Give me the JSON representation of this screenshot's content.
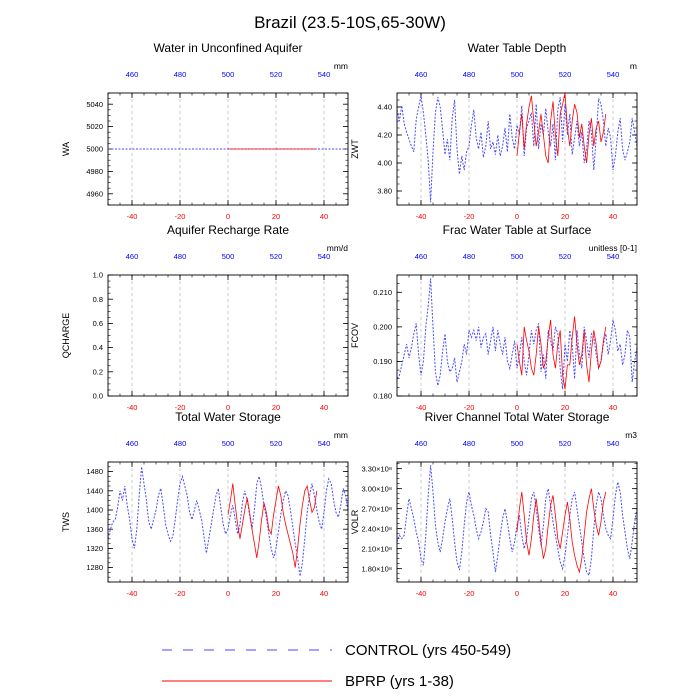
{
  "figure": {
    "title": "Brazil (23.5-10S,65-30W)"
  },
  "legend": {
    "control_label": "CONTROL (yrs 450-549)",
    "control_color": "#4a4aff",
    "bprp_label": "BPRP (yrs 1-38)",
    "bprp_color": "#ff0000"
  },
  "chart_data": [
    {
      "type": "line",
      "title": "Water in Unconfined Aquifer",
      "ylabel": "WA",
      "units": "mm",
      "xlim": [
        -50,
        50
      ],
      "ylim": [
        4950,
        5050
      ],
      "yticks": [
        4960,
        4980,
        5000,
        5020,
        5040
      ],
      "ytick_labels": [
        "4960",
        "4980",
        "5000",
        "5020",
        "5040"
      ],
      "xticks_bottom": [
        -40,
        -20,
        0,
        20,
        40
      ],
      "xticks_top": [
        460,
        480,
        500,
        520,
        540
      ],
      "series": [
        {
          "x0": -50,
          "dx": 1,
          "values": [
            5000,
            5000,
            5000,
            5000,
            5000,
            5000,
            5000,
            5000,
            5000,
            5000,
            5000,
            5000,
            5000,
            5000,
            5000,
            5000,
            5000,
            5000,
            5000,
            5000,
            5000,
            5000,
            5000,
            5000,
            5000,
            5000,
            5000,
            5000,
            5000,
            5000,
            5000,
            5000,
            5000,
            5000,
            5000,
            5000,
            5000,
            5000,
            5000,
            5000,
            5000,
            5000,
            5000,
            5000,
            5000,
            5000,
            5000,
            5000,
            5000,
            5000,
            5000,
            5000,
            5000,
            5000,
            5000,
            5000,
            5000,
            5000,
            5000,
            5000,
            5000,
            5000,
            5000,
            5000,
            5000,
            5000,
            5000,
            5000,
            5000,
            5000,
            5000,
            5000,
            5000,
            5000,
            5000,
            5000,
            5000,
            5000,
            5000,
            5000,
            5000,
            5000,
            5000,
            5000,
            5000,
            5000,
            5000,
            5000,
            5000,
            5000,
            5000,
            5000,
            5000,
            5000,
            5000,
            5000,
            5000,
            5000,
            5000,
            5000,
            5000
          ]
        },
        {
          "x0": 0,
          "dx": 1,
          "values": [
            5000,
            5000,
            5000,
            5000,
            5000,
            5000,
            5000,
            5000,
            5000,
            5000,
            5000,
            5000,
            5000,
            5000,
            5000,
            5000,
            5000,
            5000,
            5000,
            5000,
            5000,
            5000,
            5000,
            5000,
            5000,
            5000,
            5000,
            5000,
            5000,
            5000,
            5000,
            5000,
            5000,
            5000,
            5000,
            5000,
            5000,
            5000
          ]
        }
      ]
    },
    {
      "type": "line",
      "title": "Water Table Depth",
      "ylabel": "ZWT",
      "units": "m",
      "xlim": [
        -50,
        50
      ],
      "ylim": [
        3.7,
        4.5
      ],
      "yticks": [
        3.8,
        4.0,
        4.2,
        4.4
      ],
      "ytick_labels": [
        "3.80",
        "4.00",
        "4.20",
        "4.40"
      ],
      "xticks_bottom": [
        -40,
        -20,
        0,
        20,
        40
      ],
      "xticks_top": [
        460,
        480,
        500,
        520,
        540
      ],
      "series": [
        {
          "x0": -50,
          "dx": 1,
          "values": [
            4.38,
            4.3,
            4.41,
            4.28,
            4.22,
            4.17,
            4.12,
            4.08,
            4.31,
            4.4,
            4.48,
            4.36,
            4.2,
            4.02,
            3.72,
            4.08,
            4.36,
            4.47,
            4.4,
            4.24,
            4.06,
            4.17,
            4.02,
            4.32,
            4.45,
            4.1,
            3.92,
            4.05,
            3.95,
            4.08,
            4.12,
            4.27,
            4.38,
            4.18,
            4.1,
            4.22,
            4.04,
            4.12,
            4.3,
            4.1,
            4.15,
            4.06,
            4.2,
            4.05,
            4.12,
            4.25,
            4.08,
            4.35,
            4.18,
            4.1,
            4.27,
            4.2,
            4.41,
            4.05,
            4.25,
            4.3,
            4.36,
            4.12,
            4.42,
            4.1,
            4.28,
            4.2,
            4.39,
            4.22,
            4.12,
            4.28,
            4.02,
            4.38,
            4.47,
            4.15,
            4.42,
            4.2,
            4.35,
            4.06,
            4.18,
            4.3,
            4.12,
            4.22,
            4.0,
            4.1,
            4.3,
            4.22,
            3.95,
            4.18,
            4.46,
            4.42,
            4.3,
            4.12,
            4.25,
            4.18,
            3.95,
            4.05,
            4.22,
            4.32,
            4.1,
            4.02,
            4.08,
            4.15,
            4.32,
            4.22,
            4.12
          ]
        },
        {
          "x0": 0,
          "dx": 1,
          "values": [
            4.05,
            4.22,
            4.35,
            4.1,
            4.28,
            4.4,
            4.48,
            4.3,
            4.12,
            4.22,
            4.35,
            4.2,
            4.05,
            4.0,
            4.3,
            4.44,
            4.2,
            4.05,
            4.35,
            4.42,
            4.5,
            4.25,
            4.12,
            4.3,
            4.42,
            4.36,
            4.18,
            4.28,
            4.12,
            4.0,
            4.2,
            4.32,
            4.12,
            4.25,
            4.3,
            4.15,
            4.22,
            4.35
          ]
        }
      ]
    },
    {
      "type": "line",
      "title": "Aquifer Recharge Rate",
      "ylabel": "QCHARGE",
      "units": "mm/d",
      "xlim": [
        -50,
        50
      ],
      "ylim": [
        0,
        1
      ],
      "yticks": [
        0,
        0.2,
        0.4,
        0.6,
        0.8,
        1.0
      ],
      "ytick_labels": [
        "0.0",
        "0.2",
        "0.4",
        "0.6",
        "0.8",
        "1.0"
      ],
      "xticks_bottom": [
        -40,
        -20,
        0,
        20,
        40
      ],
      "xticks_top": [
        460,
        480,
        500,
        520,
        540
      ],
      "series": []
    },
    {
      "type": "line",
      "title": "Frac Water Table at Surface",
      "ylabel": "FCOV",
      "units": "unitless [0-1]",
      "xlim": [
        -50,
        50
      ],
      "ylim": [
        0.18,
        0.215
      ],
      "yticks": [
        0.18,
        0.19,
        0.2,
        0.21
      ],
      "ytick_labels": [
        "0.180",
        "0.190",
        "0.200",
        "0.210"
      ],
      "xticks_bottom": [
        -40,
        -20,
        0,
        20,
        40
      ],
      "xticks_top": [
        460,
        480,
        500,
        520,
        540
      ],
      "series": [
        {
          "x0": -50,
          "dx": 1,
          "values": [
            0.185,
            0.186,
            0.189,
            0.192,
            0.195,
            0.191,
            0.194,
            0.198,
            0.201,
            0.192,
            0.186,
            0.19,
            0.2,
            0.206,
            0.214,
            0.2,
            0.187,
            0.183,
            0.186,
            0.193,
            0.198,
            0.19,
            0.187,
            0.188,
            0.191,
            0.184,
            0.187,
            0.19,
            0.195,
            0.192,
            0.199,
            0.197,
            0.199,
            0.196,
            0.2,
            0.194,
            0.197,
            0.198,
            0.192,
            0.196,
            0.2,
            0.193,
            0.199,
            0.195,
            0.192,
            0.197,
            0.19,
            0.188,
            0.192,
            0.196,
            0.188,
            0.192,
            0.197,
            0.19,
            0.186,
            0.192,
            0.199,
            0.195,
            0.199,
            0.201,
            0.187,
            0.192,
            0.185,
            0.199,
            0.196,
            0.193,
            0.2,
            0.198,
            0.188,
            0.182,
            0.195,
            0.19,
            0.199,
            0.195,
            0.185,
            0.199,
            0.192,
            0.188,
            0.2,
            0.196,
            0.191,
            0.198,
            0.197,
            0.192,
            0.188,
            0.19,
            0.195,
            0.198,
            0.192,
            0.196,
            0.202,
            0.199,
            0.193,
            0.195,
            0.189,
            0.192,
            0.199,
            0.197,
            0.184,
            0.19,
            0.194
          ]
        },
        {
          "x0": 0,
          "dx": 1,
          "values": [
            0.195,
            0.19,
            0.186,
            0.2,
            0.196,
            0.193,
            0.188,
            0.186,
            0.192,
            0.2,
            0.195,
            0.188,
            0.19,
            0.197,
            0.202,
            0.192,
            0.188,
            0.195,
            0.199,
            0.186,
            0.182,
            0.189,
            0.189,
            0.197,
            0.203,
            0.195,
            0.189,
            0.192,
            0.199,
            0.189,
            0.184,
            0.193,
            0.199,
            0.195,
            0.188,
            0.19,
            0.196,
            0.2
          ]
        }
      ]
    },
    {
      "type": "line",
      "title": "Total Water Storage",
      "ylabel": "TWS",
      "units": "mm",
      "xlim": [
        -50,
        50
      ],
      "ylim": [
        1250,
        1500
      ],
      "yticks": [
        1280,
        1320,
        1360,
        1400,
        1440,
        1480
      ],
      "ytick_labels": [
        "1280",
        "1320",
        "1360",
        "1400",
        "1440",
        "1480"
      ],
      "xticks_bottom": [
        -40,
        -20,
        0,
        20,
        40
      ],
      "xticks_top": [
        460,
        480,
        500,
        520,
        540
      ],
      "series": [
        {
          "x0": -50,
          "dx": 1,
          "values": [
            1340,
            1360,
            1375,
            1380,
            1405,
            1440,
            1420,
            1450,
            1410,
            1380,
            1340,
            1320,
            1360,
            1430,
            1490,
            1455,
            1420,
            1375,
            1360,
            1380,
            1400,
            1430,
            1445,
            1410,
            1370,
            1350,
            1335,
            1345,
            1380,
            1420,
            1455,
            1470,
            1450,
            1430,
            1395,
            1380,
            1400,
            1420,
            1400,
            1380,
            1345,
            1310,
            1340,
            1370,
            1400,
            1430,
            1445,
            1405,
            1370,
            1350,
            1360,
            1390,
            1410,
            1380,
            1350,
            1370,
            1415,
            1440,
            1420,
            1390,
            1360,
            1400,
            1455,
            1470,
            1445,
            1410,
            1385,
            1350,
            1320,
            1300,
            1320,
            1355,
            1390,
            1420,
            1440,
            1430,
            1400,
            1365,
            1330,
            1300,
            1262,
            1290,
            1340,
            1395,
            1430,
            1455,
            1430,
            1400,
            1375,
            1360,
            1395,
            1440,
            1465,
            1455,
            1420,
            1395,
            1385,
            1410,
            1445,
            1430,
            1400
          ]
        },
        {
          "x0": 0,
          "dx": 1,
          "values": [
            1390,
            1420,
            1455,
            1410,
            1370,
            1340,
            1370,
            1400,
            1425,
            1395,
            1360,
            1330,
            1300,
            1335,
            1380,
            1415,
            1395,
            1360,
            1350,
            1390,
            1420,
            1450,
            1430,
            1395,
            1370,
            1350,
            1330,
            1310,
            1280,
            1320,
            1370,
            1410,
            1440,
            1450,
            1420,
            1395,
            1405,
            1440
          ]
        }
      ]
    },
    {
      "type": "line",
      "title": "River Channel Total Water Storage",
      "ylabel": "VOLR",
      "units": "m3",
      "xlim": [
        -50,
        50
      ],
      "ylim": [
        1.6,
        3.4
      ],
      "yticks": [
        1.8,
        2.1,
        2.4,
        2.7,
        3.0,
        3.3
      ],
      "ytick_labels": [
        "1.80×10⁸",
        "2.10×10⁸",
        "2.40×10⁸",
        "2.70×10⁸",
        "3.00×10⁸",
        "3.30×10⁸"
      ],
      "xticks_bottom": [
        -40,
        -20,
        0,
        20,
        40
      ],
      "xticks_top": [
        460,
        480,
        500,
        520,
        540
      ],
      "series": [
        {
          "x0": -50,
          "dx": 1,
          "values": [
            2.2,
            2.3,
            2.25,
            2.3,
            2.6,
            2.85,
            2.7,
            2.55,
            2.35,
            2.2,
            1.95,
            1.85,
            2.3,
            2.9,
            3.35,
            2.95,
            2.45,
            2.2,
            2.05,
            2.25,
            2.5,
            2.7,
            2.85,
            2.55,
            2.2,
            1.9,
            1.78,
            2.05,
            2.45,
            2.8,
            2.95,
            2.75,
            2.6,
            2.4,
            2.25,
            2.35,
            2.5,
            2.7,
            2.65,
            2.3,
            2.05,
            1.75,
            2.0,
            2.3,
            2.55,
            2.7,
            2.5,
            2.25,
            2.05,
            2.2,
            2.45,
            2.6,
            2.3,
            2.1,
            2.25,
            2.55,
            2.85,
            2.95,
            2.7,
            2.4,
            2.15,
            2.45,
            2.85,
            3.0,
            2.75,
            2.5,
            2.3,
            2.1,
            1.9,
            1.8,
            2.0,
            2.3,
            2.6,
            2.85,
            2.95,
            2.7,
            2.45,
            2.2,
            1.95,
            1.75,
            1.7,
            1.95,
            2.4,
            2.75,
            2.95,
            2.85,
            2.6,
            2.4,
            2.3,
            2.25,
            2.55,
            2.9,
            3.1,
            2.95,
            2.6,
            2.35,
            2.1,
            1.95,
            2.2,
            2.5,
            2.7
          ]
        },
        {
          "x0": 0,
          "dx": 1,
          "values": [
            2.35,
            2.7,
            2.95,
            2.6,
            2.2,
            2.0,
            2.25,
            2.6,
            2.85,
            2.55,
            2.2,
            1.95,
            2.1,
            2.45,
            2.75,
            2.9,
            2.6,
            2.25,
            2.1,
            2.35,
            2.6,
            2.8,
            2.55,
            2.2,
            2.0,
            1.85,
            1.75,
            1.95,
            2.3,
            2.65,
            2.85,
            3.0,
            2.7,
            2.45,
            2.3,
            2.5,
            2.8,
            2.95
          ]
        }
      ]
    }
  ]
}
